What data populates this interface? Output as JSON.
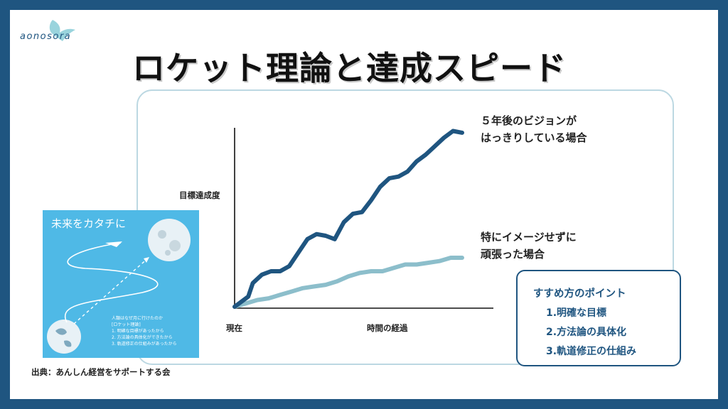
{
  "logo": {
    "text": "aonosora"
  },
  "title": "ロケット理論と達成スピード",
  "chart_data": {
    "type": "line",
    "title": "",
    "xlabel": "時間の経過",
    "ylabel": "目標達成度",
    "x_start_label": "現在",
    "xlim": [
      0,
      100
    ],
    "ylim": [
      0,
      100
    ],
    "series": [
      {
        "name": "５年後のビジョンがはっきりしている場合",
        "label_lines": [
          "５年後のビジョンが",
          "はっきりしている場合"
        ],
        "color": "#1f5580",
        "x": [
          0,
          6,
          8,
          12,
          16,
          20,
          24,
          28,
          32,
          36,
          40,
          44,
          48,
          52,
          56,
          60,
          64,
          68,
          72,
          76,
          80,
          84,
          88,
          92,
          96,
          100
        ],
        "y": [
          0,
          6,
          14,
          19,
          21,
          21,
          24,
          32,
          40,
          43,
          42,
          40,
          50,
          55,
          56,
          63,
          71,
          76,
          77,
          80,
          86,
          90,
          95,
          100,
          104,
          103
        ]
      },
      {
        "name": "特にイメージせずに頑張った場合",
        "label_lines": [
          "特にイメージせずに",
          "頑張った場合"
        ],
        "color": "#8cbecb",
        "x": [
          0,
          5,
          10,
          15,
          20,
          25,
          30,
          35,
          40,
          45,
          50,
          55,
          60,
          65,
          70,
          75,
          80,
          85,
          90,
          95,
          100
        ],
        "y": [
          0,
          2,
          4,
          5,
          7,
          9,
          11,
          12,
          13,
          15,
          18,
          20,
          21,
          21,
          23,
          25,
          25,
          26,
          27,
          29,
          29
        ]
      }
    ]
  },
  "illustration": {
    "title": "未来をカタチに",
    "notes": [
      "人類はなぜ月に行けたのか",
      "[ロケット理論]",
      "1. 明確な目標があったから",
      "2. 方法論の具体化ができたから",
      "3. 軌道修正の仕組みがあったから"
    ]
  },
  "source": "出典：あんしん経営をサポートする会",
  "points": {
    "title": "すすめ方のポイント",
    "items": [
      "1.明確な目標",
      "2.方法論の具体化",
      "3.軌道修正の仕組み"
    ]
  }
}
